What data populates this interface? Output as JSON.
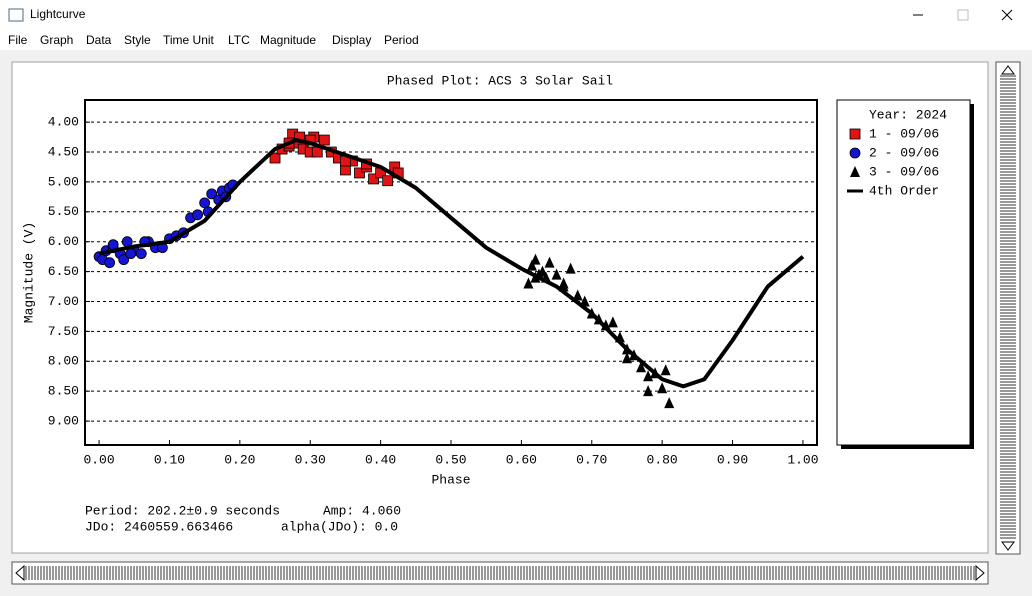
{
  "window": {
    "title": "Lightcurve",
    "menu": [
      "File",
      "Graph",
      "Data",
      "Style",
      "Time Unit",
      "LTC",
      "Magnitude",
      "Display",
      "Period"
    ]
  },
  "chart_data": {
    "type": "scatter",
    "title": "Phased Plot: ACS 3 Solar Sail",
    "x_label": "Phase",
    "y_label": "Magnitude (V)",
    "xlim": [
      -0.02,
      1.02
    ],
    "ylim": [
      3.63,
      9.4
    ],
    "y_inverted": true,
    "grid": true,
    "xticks": [
      {
        "value": 0,
        "label": "0.00"
      },
      {
        "value": 0.1,
        "label": "0.10"
      },
      {
        "value": 0.2,
        "label": "0.20"
      },
      {
        "value": 0.3,
        "label": "0.30"
      },
      {
        "value": 0.4,
        "label": "0.40"
      },
      {
        "value": 0.5,
        "label": "0.50"
      },
      {
        "value": 0.6,
        "label": "0.60"
      },
      {
        "value": 0.7,
        "label": "0.70"
      },
      {
        "value": 0.8,
        "label": "0.80"
      },
      {
        "value": 0.9,
        "label": "0.90"
      },
      {
        "value": 1,
        "label": "1.00"
      }
    ],
    "yticks": [
      {
        "value": 4,
        "label": "4.00"
      },
      {
        "value": 4.5,
        "label": "4.50"
      },
      {
        "value": 5,
        "label": "5.00"
      },
      {
        "value": 5.5,
        "label": "5.50"
      },
      {
        "value": 6,
        "label": "6.00"
      },
      {
        "value": 6.5,
        "label": "6.50"
      },
      {
        "value": 7,
        "label": "7.00"
      },
      {
        "value": 7.5,
        "label": "7.50"
      },
      {
        "value": 8,
        "label": "8.00"
      },
      {
        "value": 8.5,
        "label": "8.50"
      },
      {
        "value": 9,
        "label": "9.00"
      }
    ],
    "legend_title": "Year: 2024",
    "series": [
      {
        "name": "1 - 09/06",
        "color": "#e01414",
        "marker": "square",
        "x": [
          0.25,
          0.26,
          0.27,
          0.275,
          0.28,
          0.285,
          0.29,
          0.3,
          0.305,
          0.31,
          0.32,
          0.33,
          0.34,
          0.35,
          0.36,
          0.37,
          0.38,
          0.39,
          0.4,
          0.41,
          0.42,
          0.425,
          0.35,
          0.38,
          0.3,
          0.27
        ],
        "values": [
          4.6,
          4.45,
          4.4,
          4.2,
          4.35,
          4.25,
          4.45,
          4.5,
          4.25,
          4.5,
          4.3,
          4.5,
          4.6,
          4.8,
          4.65,
          4.85,
          4.75,
          4.95,
          4.85,
          4.98,
          4.75,
          4.85,
          4.65,
          4.7,
          4.3,
          4.35
        ]
      },
      {
        "name": "2 - 09/06",
        "color": "#1414d2",
        "marker": "circle",
        "x": [
          0,
          0.005,
          0.01,
          0.015,
          0.02,
          0.03,
          0.035,
          0.04,
          0.05,
          0.06,
          0.07,
          0.08,
          0.09,
          0.1,
          0.11,
          0.12,
          0.13,
          0.14,
          0.15,
          0.155,
          0.16,
          0.17,
          0.175,
          0.18,
          0.185,
          0.19,
          0.02,
          0.045,
          0.065
        ],
        "values": [
          6.25,
          6.3,
          6.15,
          6.35,
          6.1,
          6.2,
          6.3,
          6,
          6.15,
          6.2,
          6,
          6.1,
          6.1,
          5.95,
          5.9,
          5.85,
          5.6,
          5.55,
          5.35,
          5.5,
          5.2,
          5.3,
          5.15,
          5.25,
          5.1,
          5.05,
          6.05,
          6.2,
          6
        ]
      },
      {
        "name": "3 - 09/06",
        "color": "#000000",
        "marker": "triangle",
        "x": [
          0.61,
          0.615,
          0.62,
          0.625,
          0.63,
          0.635,
          0.64,
          0.65,
          0.66,
          0.67,
          0.68,
          0.69,
          0.7,
          0.71,
          0.72,
          0.73,
          0.74,
          0.75,
          0.76,
          0.77,
          0.78,
          0.79,
          0.8,
          0.805,
          0.81,
          0.62,
          0.66,
          0.75,
          0.78
        ],
        "values": [
          6.7,
          6.4,
          6.3,
          6.55,
          6.5,
          6.6,
          6.35,
          6.55,
          6.75,
          6.45,
          6.9,
          7,
          7.2,
          7.3,
          7.4,
          7.35,
          7.6,
          7.8,
          7.9,
          8.1,
          8.25,
          8.2,
          8.45,
          8.15,
          8.7,
          6.6,
          6.7,
          7.95,
          8.5
        ]
      },
      {
        "name": "4th Order",
        "color": "#000000",
        "marker": "line",
        "x": [
          0,
          0.05,
          0.1,
          0.15,
          0.2,
          0.25,
          0.28,
          0.3,
          0.35,
          0.4,
          0.45,
          0.5,
          0.55,
          0.6,
          0.65,
          0.7,
          0.75,
          0.8,
          0.83,
          0.86,
          0.9,
          0.95,
          1
        ],
        "values": [
          6.2,
          6.08,
          6,
          5.65,
          5,
          4.45,
          4.3,
          4.35,
          4.55,
          4.75,
          5.1,
          5.6,
          6.1,
          6.45,
          6.75,
          7.2,
          7.8,
          8.3,
          8.42,
          8.3,
          7.65,
          6.75,
          6.25
        ]
      }
    ]
  },
  "stats": {
    "period": "Period: 202.2±0.9 seconds",
    "amp": "Amp: 4.060",
    "jdo": "JDo: 2460559.663466",
    "alpha": "alpha(JDo): 0.0"
  }
}
